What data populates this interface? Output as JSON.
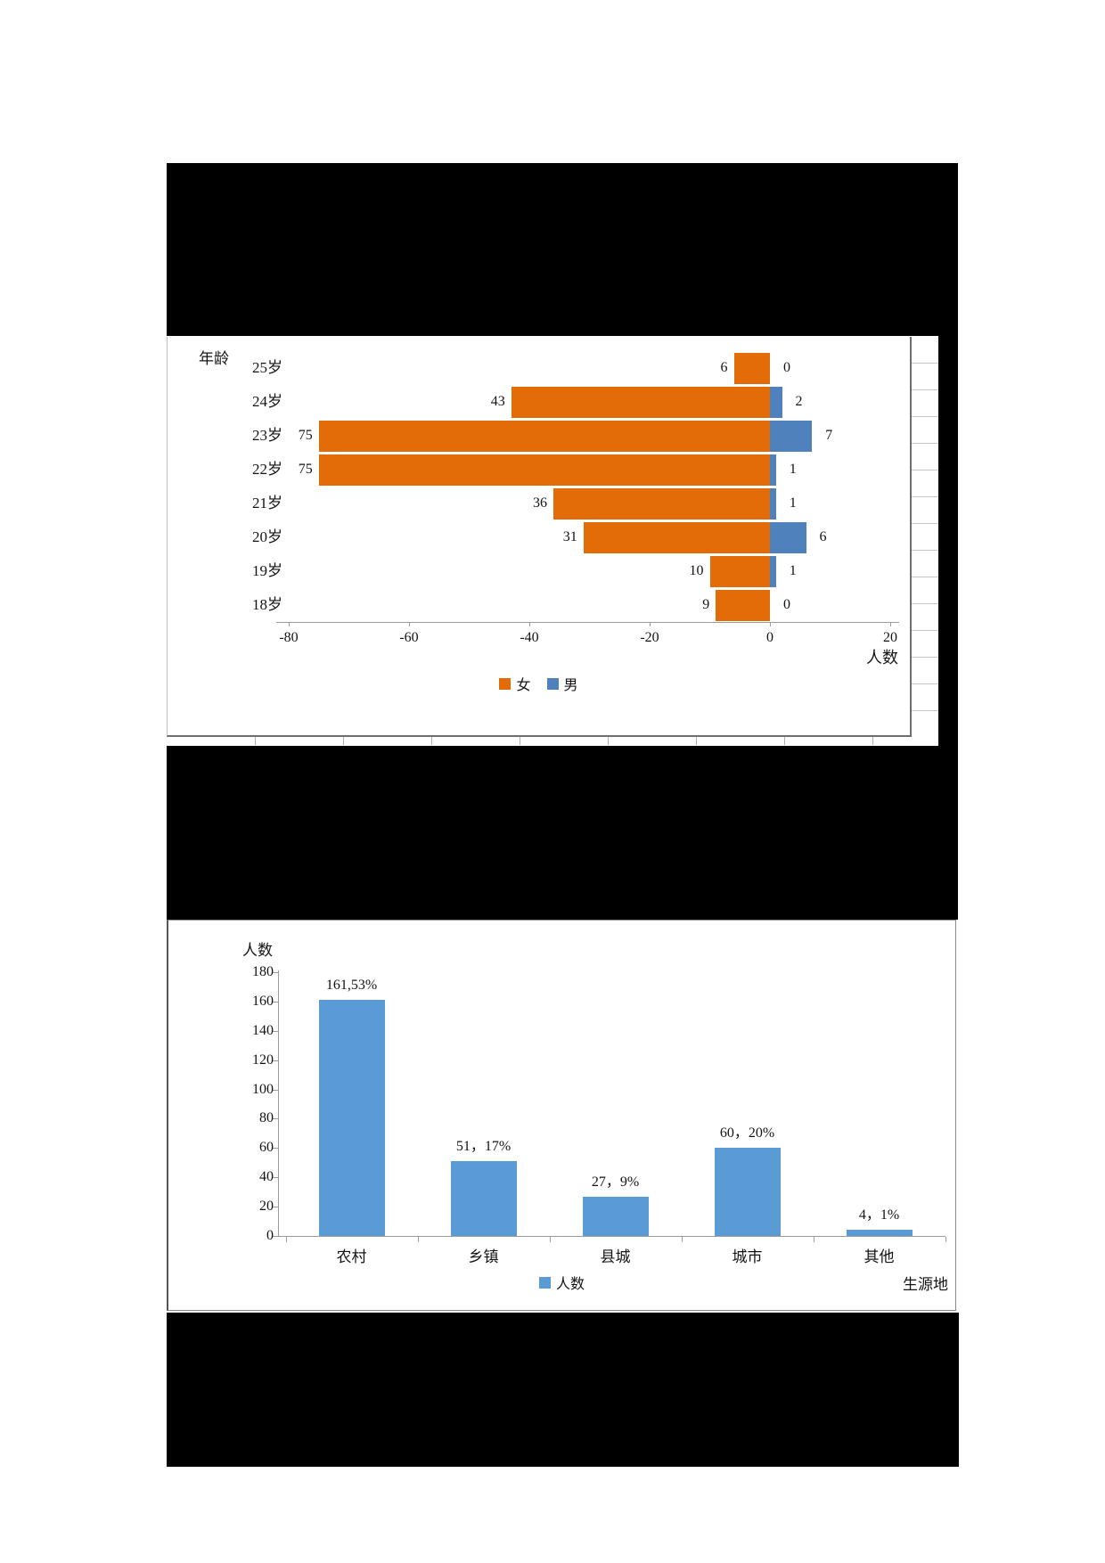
{
  "chart_data": [
    {
      "type": "bar",
      "orientation": "horizontal-pyramid",
      "axis_title_categories": "年龄",
      "axis_title_values": "人数",
      "categories": [
        "25岁",
        "24岁",
        "23岁",
        "22岁",
        "21岁",
        "20岁",
        "19岁",
        "18岁"
      ],
      "series": [
        {
          "name": "女",
          "color": "#E36C09",
          "side": "negative",
          "values": [
            6,
            43,
            75,
            75,
            36,
            31,
            10,
            9
          ]
        },
        {
          "name": "男",
          "color": "#4F81BD",
          "side": "positive",
          "values": [
            0,
            2,
            7,
            1,
            1,
            6,
            1,
            0
          ]
        }
      ],
      "xlim": [
        -80,
        20
      ],
      "xticks": [
        -80,
        -60,
        -40,
        -20,
        0,
        20
      ],
      "grid": false,
      "legend_position": "bottom",
      "data_labels": "outside-end"
    },
    {
      "type": "bar",
      "orientation": "vertical",
      "axis_title_values": "人数",
      "axis_title_categories": "生源地",
      "categories": [
        "农村",
        "乡镇",
        "县城",
        "城市",
        "其他"
      ],
      "values": [
        161,
        51,
        27,
        60,
        4
      ],
      "data_labels": [
        "161,53%",
        "51，17%",
        "27，9%",
        "60，20%",
        "4，1%"
      ],
      "bar_color": "#5B9BD5",
      "ylim": [
        0,
        180
      ],
      "yticks": [
        180,
        160,
        140,
        120,
        100,
        80,
        60,
        40,
        20,
        0
      ],
      "grid": false,
      "legend": {
        "label": "人数",
        "swatch_color": "#5B9BD5"
      },
      "legend_position": "bottom"
    }
  ],
  "text_color": "#141414",
  "axis_color": "#9c9c9c"
}
